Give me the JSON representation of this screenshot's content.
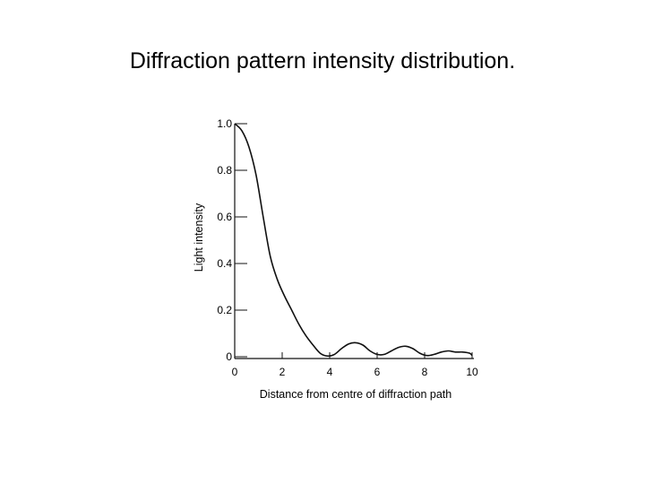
{
  "slide": {
    "title": "Diffraction pattern intensity distribution."
  },
  "chart_data": {
    "type": "line",
    "title": "",
    "xlabel": "Distance from centre of diffraction path",
    "ylabel": "Light intensity",
    "xlim": [
      0,
      10
    ],
    "ylim": [
      0,
      1.0
    ],
    "x_ticks": [
      0,
      2,
      4,
      6,
      8,
      10
    ],
    "x_tick_labels": [
      "0",
      "2",
      "4",
      "6",
      "8",
      "10"
    ],
    "y_ticks": [
      0,
      0.2,
      0.4,
      0.6,
      0.8,
      1.0
    ],
    "y_tick_labels": [
      "0",
      "0.2",
      "0.4",
      "0.6",
      "0.8",
      "1.0"
    ],
    "grid": false,
    "legend": "none",
    "series": [
      {
        "x": [
          0,
          0.3,
          0.6,
          0.9,
          1.2,
          1.5,
          1.8,
          2.1,
          2.4,
          2.7,
          3.0,
          3.3,
          3.6,
          3.9,
          4.2,
          4.5,
          4.8,
          5.1,
          5.4,
          5.7,
          6.0,
          6.3,
          6.6,
          6.9,
          7.2,
          7.5,
          7.8,
          8.1,
          8.4,
          8.7,
          9.0,
          9.3,
          9.6,
          9.9,
          10.0
        ],
        "y": [
          1.0,
          0.97,
          0.9,
          0.78,
          0.6,
          0.43,
          0.33,
          0.26,
          0.2,
          0.14,
          0.09,
          0.05,
          0.015,
          0.003,
          0.01,
          0.035,
          0.055,
          0.06,
          0.05,
          0.025,
          0.01,
          0.01,
          0.025,
          0.04,
          0.045,
          0.035,
          0.015,
          0.005,
          0.01,
          0.02,
          0.025,
          0.02,
          0.02,
          0.015,
          0.005
        ]
      }
    ]
  }
}
